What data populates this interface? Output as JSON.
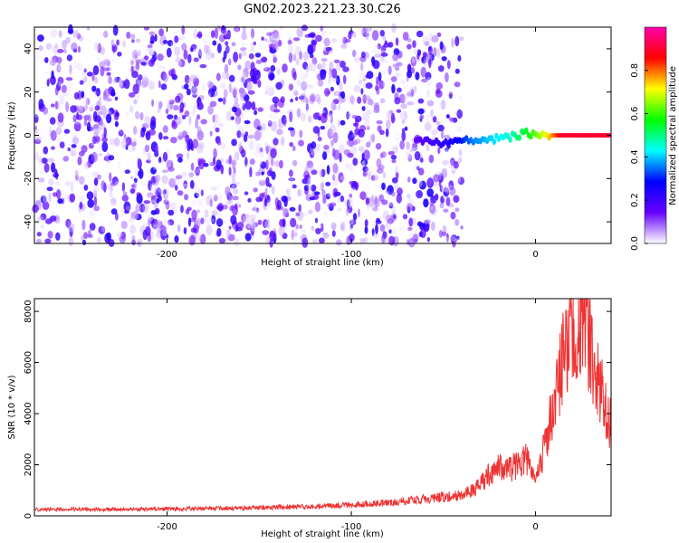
{
  "title": "GN02.2023.221.23.30.C26",
  "chart_data": [
    {
      "type": "heatmap",
      "xlabel": "Height of straight line (km)",
      "ylabel": "Frequency (Hz)",
      "xlim": [
        -272,
        41
      ],
      "ylim": [
        -50,
        50
      ],
      "xticks": [
        -200,
        -100,
        0
      ],
      "yticks": [
        -40,
        -20,
        0,
        20,
        40
      ],
      "colorbar": {
        "label": "Normalized spectral amplitude",
        "range": [
          0,
          1
        ],
        "ticks": [
          "0.0",
          "0.2",
          "0.4",
          "0.6",
          "0.8"
        ],
        "colormap": [
          "#ffffff",
          "#6600ff",
          "#0000ff",
          "#00ffff",
          "#00ff00",
          "#ffff00",
          "#ff0000",
          "#ff00aa"
        ]
      },
      "features": {
        "noise_region_x": [
          -272,
          -40
        ],
        "noise_amplitude": [
          0.0,
          0.25
        ],
        "signal_track": [
          {
            "x": -65,
            "y": -2,
            "amplitude": 0.15
          },
          {
            "x": -55,
            "y": -4,
            "amplitude": 0.2
          },
          {
            "x": -45,
            "y": -2,
            "amplitude": 0.25
          },
          {
            "x": -35,
            "y": -3,
            "amplitude": 0.35
          },
          {
            "x": -25,
            "y": -2,
            "amplitude": 0.4
          },
          {
            "x": -15,
            "y": -1,
            "amplitude": 0.45
          },
          {
            "x": -5,
            "y": 1,
            "amplitude": 0.55
          },
          {
            "x": 5,
            "y": 0,
            "amplitude": 0.7
          },
          {
            "x": 15,
            "y": 0,
            "amplitude": 0.9
          },
          {
            "x": 41,
            "y": 0,
            "amplitude": 0.9
          }
        ]
      }
    },
    {
      "type": "line",
      "xlabel": "Height of straight line (km)",
      "ylabel": "SNR (10 * v/v)",
      "xlim": [
        -272,
        41
      ],
      "ylim": [
        0,
        8500
      ],
      "xticks": [
        -200,
        -100,
        0
      ],
      "yticks": [
        0,
        2000,
        4000,
        6000,
        8000
      ],
      "color": "#ee3333",
      "series": [
        {
          "x": [
            -272,
            -250,
            -225,
            -200,
            -175,
            -150,
            -125,
            -100,
            -80,
            -60,
            -40,
            -32,
            -25,
            -20,
            -15,
            -10,
            -5,
            0,
            5,
            10,
            15,
            20,
            25,
            30,
            35,
            41
          ],
          "y": [
            250,
            260,
            250,
            270,
            290,
            320,
            360,
            420,
            520,
            650,
            800,
            1100,
            1600,
            2000,
            1800,
            2000,
            2200,
            1200,
            2700,
            4500,
            6200,
            7500,
            7800,
            6500,
            5000,
            3500
          ]
        }
      ]
    }
  ]
}
